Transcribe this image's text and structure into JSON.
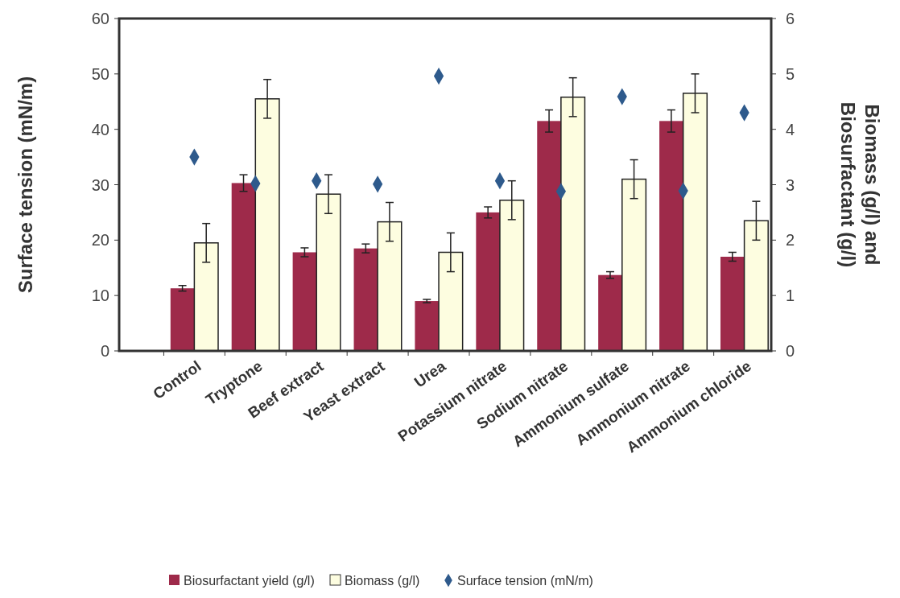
{
  "chart_data": {
    "type": "bar",
    "categories": [
      "Control",
      "Tryptone",
      "Beef extract",
      "Yeast extract",
      "Urea",
      "Potassium nitrate",
      "Sodium nitrate",
      "Ammonium sulfate",
      "Ammonium nitrate",
      "Ammonium chloride"
    ],
    "series": [
      {
        "name": "Biosurfactant yield (g/l)",
        "axis": "y2",
        "color": "#9e2a4a",
        "values": [
          1.13,
          3.03,
          1.78,
          1.85,
          0.9,
          2.5,
          4.15,
          1.37,
          4.15,
          1.7
        ],
        "errors": [
          0.05,
          0.15,
          0.08,
          0.08,
          0.03,
          0.1,
          0.2,
          0.06,
          0.2,
          0.08
        ]
      },
      {
        "name": "Biomass (g/l)",
        "axis": "y2",
        "color": "#fdfde0",
        "values": [
          1.95,
          4.55,
          2.83,
          2.33,
          1.78,
          2.72,
          4.58,
          3.1,
          4.65,
          2.35
        ],
        "errors": [
          0.35,
          0.35,
          0.35,
          0.35,
          0.35,
          0.35,
          0.35,
          0.35,
          0.35,
          0.35
        ]
      },
      {
        "name": "Surface tension (mN/m)",
        "type": "scatter",
        "color": "#2e5a8c",
        "marker": "diamond",
        "values": [
          35,
          30.2,
          30.7,
          30.1,
          49.6,
          30.7,
          28.8,
          45.9,
          28.9,
          43
        ]
      }
    ],
    "ylabel": "Surface tension (mN/m)",
    "y2label": "Biomass (g/l) and\nBiosurfactant (g/l)",
    "ylim": [
      0,
      60
    ],
    "yticks": [
      0,
      10,
      20,
      30,
      40,
      50,
      60
    ],
    "y2lim": [
      0,
      6
    ],
    "y2ticks": [
      0,
      1,
      2,
      3,
      4,
      5,
      6
    ],
    "legend": "bottom",
    "grid": false
  }
}
